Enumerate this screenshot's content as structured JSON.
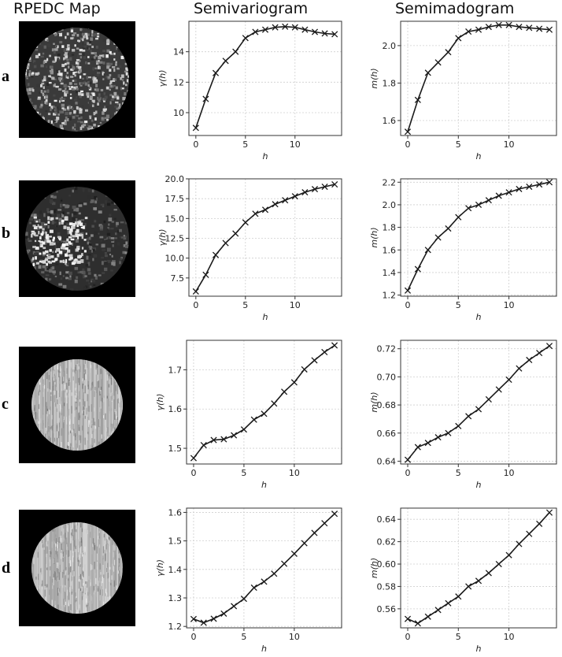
{
  "headers": {
    "map": "RPEDC Map",
    "semivariogram": "Semivariogram",
    "semimadogram": "Semimadogram"
  },
  "rows": [
    {
      "label": "a",
      "map_style": "speckled-dark"
    },
    {
      "label": "b",
      "map_style": "bright-clusters"
    },
    {
      "label": "c",
      "map_style": "light-vertical-texture"
    },
    {
      "label": "d",
      "map_style": "light-vertical-texture"
    }
  ],
  "chart_data": [
    {
      "id": "a-semivariogram",
      "type": "line",
      "marker": "x",
      "xlabel": "h",
      "ylabel": "γ(h)",
      "x": [
        0,
        1,
        2,
        3,
        4,
        5,
        6,
        7,
        8,
        9,
        10,
        11,
        12,
        13,
        14
      ],
      "values": [
        9.0,
        10.9,
        12.6,
        13.4,
        14.0,
        14.9,
        15.3,
        15.45,
        15.6,
        15.65,
        15.6,
        15.45,
        15.3,
        15.2,
        15.15
      ],
      "xlim": [
        -0.7,
        14.7
      ],
      "ylim": [
        8.5,
        16.0
      ],
      "xticks": [
        0,
        5,
        10
      ],
      "yticks": [
        10,
        12,
        14
      ],
      "ytick_decimals": 0,
      "grid": true
    },
    {
      "id": "a-semimadogram",
      "type": "line",
      "marker": "x",
      "xlabel": "h",
      "ylabel": "m(h)",
      "x": [
        0,
        1,
        2,
        3,
        4,
        5,
        6,
        7,
        8,
        9,
        10,
        11,
        12,
        13,
        14
      ],
      "values": [
        1.54,
        1.71,
        1.855,
        1.91,
        1.965,
        2.04,
        2.075,
        2.085,
        2.1,
        2.11,
        2.11,
        2.1,
        2.095,
        2.09,
        2.085
      ],
      "xlim": [
        -0.7,
        14.7
      ],
      "ylim": [
        1.52,
        2.13
      ],
      "xticks": [
        0,
        5,
        10
      ],
      "yticks": [
        1.6,
        1.8,
        2.0
      ],
      "ytick_decimals": 1,
      "grid": true
    },
    {
      "id": "b-semivariogram",
      "type": "line",
      "marker": "x",
      "xlabel": "h",
      "ylabel": "γ(h)",
      "x": [
        0,
        1,
        2,
        3,
        4,
        5,
        6,
        7,
        8,
        9,
        10,
        11,
        12,
        13,
        14
      ],
      "values": [
        5.8,
        7.9,
        10.4,
        11.9,
        13.1,
        14.5,
        15.6,
        16.1,
        16.8,
        17.3,
        17.8,
        18.3,
        18.7,
        19.0,
        19.3
      ],
      "xlim": [
        -0.7,
        14.7
      ],
      "ylim": [
        5.2,
        20.0
      ],
      "xticks": [
        0,
        5,
        10
      ],
      "yticks": [
        7.5,
        10.0,
        12.5,
        15.0,
        17.5,
        20.0
      ],
      "ytick_decimals": 1,
      "grid": true
    },
    {
      "id": "b-semimadogram",
      "type": "line",
      "marker": "x",
      "xlabel": "h",
      "ylabel": "m(h)",
      "x": [
        0,
        1,
        2,
        3,
        4,
        5,
        6,
        7,
        8,
        9,
        10,
        11,
        12,
        13,
        14
      ],
      "values": [
        1.24,
        1.43,
        1.6,
        1.71,
        1.79,
        1.89,
        1.97,
        2.0,
        2.04,
        2.08,
        2.11,
        2.14,
        2.16,
        2.18,
        2.2
      ],
      "xlim": [
        -0.7,
        14.7
      ],
      "ylim": [
        1.19,
        2.23
      ],
      "xticks": [
        0,
        5,
        10
      ],
      "yticks": [
        1.2,
        1.4,
        1.6,
        1.8,
        2.0,
        2.2
      ],
      "ytick_decimals": 1,
      "grid": true
    },
    {
      "id": "c-semivariogram",
      "type": "line",
      "marker": "x",
      "xlabel": "h",
      "ylabel": "γ(h)",
      "x": [
        0,
        1,
        2,
        3,
        4,
        5,
        6,
        7,
        8,
        9,
        10,
        11,
        12,
        13,
        14
      ],
      "values": [
        1.475,
        1.508,
        1.521,
        1.523,
        1.533,
        1.548,
        1.573,
        1.588,
        1.614,
        1.644,
        1.668,
        1.701,
        1.724,
        1.745,
        1.762
      ],
      "xlim": [
        -0.7,
        14.7
      ],
      "ylim": [
        1.46,
        1.775
      ],
      "xticks": [
        0,
        5,
        10
      ],
      "yticks": [
        1.5,
        1.6,
        1.7
      ],
      "ytick_decimals": 1,
      "grid": true
    },
    {
      "id": "c-semimadogram",
      "type": "line",
      "marker": "x",
      "xlabel": "h",
      "ylabel": "m(h)",
      "x": [
        0,
        1,
        2,
        3,
        4,
        5,
        6,
        7,
        8,
        9,
        10,
        11,
        12,
        13,
        14
      ],
      "values": [
        0.641,
        0.65,
        0.653,
        0.657,
        0.66,
        0.665,
        0.672,
        0.677,
        0.684,
        0.691,
        0.698,
        0.706,
        0.712,
        0.717,
        0.722
      ],
      "xlim": [
        -0.7,
        14.7
      ],
      "ylim": [
        0.638,
        0.726
      ],
      "xticks": [
        0,
        5,
        10
      ],
      "yticks": [
        0.64,
        0.66,
        0.68,
        0.7,
        0.72
      ],
      "ytick_decimals": 2,
      "grid": true
    },
    {
      "id": "d-semivariogram",
      "type": "line",
      "marker": "x",
      "xlabel": "h",
      "ylabel": "γ(h)",
      "x": [
        0,
        1,
        2,
        3,
        4,
        5,
        6,
        7,
        8,
        9,
        10,
        11,
        12,
        13,
        14
      ],
      "values": [
        1.226,
        1.213,
        1.227,
        1.245,
        1.271,
        1.297,
        1.336,
        1.357,
        1.385,
        1.42,
        1.455,
        1.492,
        1.528,
        1.562,
        1.595
      ],
      "xlim": [
        -0.7,
        14.7
      ],
      "ylim": [
        1.195,
        1.615
      ],
      "xticks": [
        0,
        5,
        10
      ],
      "yticks": [
        1.2,
        1.3,
        1.4,
        1.5,
        1.6
      ],
      "ytick_decimals": 1,
      "grid": true
    },
    {
      "id": "d-semimadogram",
      "type": "line",
      "marker": "x",
      "xlabel": "h",
      "ylabel": "m(h)",
      "x": [
        0,
        1,
        2,
        3,
        4,
        5,
        6,
        7,
        8,
        9,
        10,
        11,
        12,
        13,
        14
      ],
      "values": [
        0.551,
        0.547,
        0.553,
        0.559,
        0.565,
        0.571,
        0.58,
        0.585,
        0.592,
        0.6,
        0.608,
        0.618,
        0.627,
        0.636,
        0.646
      ],
      "xlim": [
        -0.7,
        14.7
      ],
      "ylim": [
        0.543,
        0.65
      ],
      "xticks": [
        0,
        5,
        10
      ],
      "yticks": [
        0.56,
        0.58,
        0.6,
        0.62,
        0.64
      ],
      "ytick_decimals": 2,
      "grid": true
    }
  ]
}
